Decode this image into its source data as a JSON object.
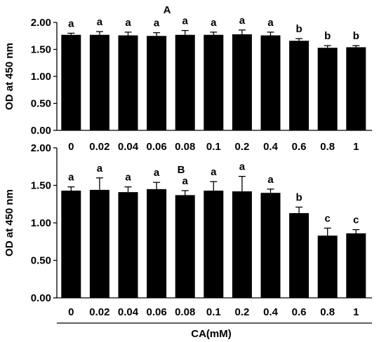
{
  "chart_data": [
    {
      "type": "bar",
      "panel_label": "A",
      "ylabel": "OD at 450 nm",
      "ylim": [
        0,
        2.0
      ],
      "yticks": [
        "0.00",
        "0.50",
        "1.00",
        "1.50",
        "2.00"
      ],
      "categories": [
        "0",
        "0.02",
        "0.04",
        "0.06",
        "0.08",
        "0.1",
        "0.2",
        "0.4",
        "0.6",
        "0.8",
        "1"
      ],
      "values": [
        1.77,
        1.77,
        1.76,
        1.75,
        1.77,
        1.77,
        1.78,
        1.76,
        1.66,
        1.53,
        1.54
      ],
      "errors": [
        0.03,
        0.06,
        0.06,
        0.06,
        0.08,
        0.05,
        0.08,
        0.06,
        0.04,
        0.04,
        0.03
      ],
      "significance": [
        "a",
        "a",
        "a",
        "a",
        "a",
        "a",
        "a",
        "a",
        "b",
        "b",
        "b"
      ],
      "bar_color": "#000000"
    },
    {
      "type": "bar",
      "panel_label": "B",
      "ylabel": "OD at 450 nm",
      "xlabel": "CA(mM)",
      "ylim": [
        0,
        2.0
      ],
      "yticks": [
        "0.00",
        "0.50",
        "1.00",
        "1.50",
        "2.00"
      ],
      "categories": [
        "0",
        "0.02",
        "0.04",
        "0.06",
        "0.08",
        "0.1",
        "0.2",
        "0.4",
        "0.6",
        "0.8",
        "1"
      ],
      "values": [
        1.43,
        1.44,
        1.41,
        1.45,
        1.37,
        1.43,
        1.42,
        1.4,
        1.13,
        0.83,
        0.86
      ],
      "errors": [
        0.05,
        0.16,
        0.07,
        0.09,
        0.06,
        0.12,
        0.2,
        0.05,
        0.08,
        0.1,
        0.05
      ],
      "significance": [
        "a",
        "a",
        "a",
        "a",
        "a",
        "a",
        "a",
        "a",
        "b",
        "c",
        "c"
      ],
      "bar_color": "#000000"
    }
  ]
}
